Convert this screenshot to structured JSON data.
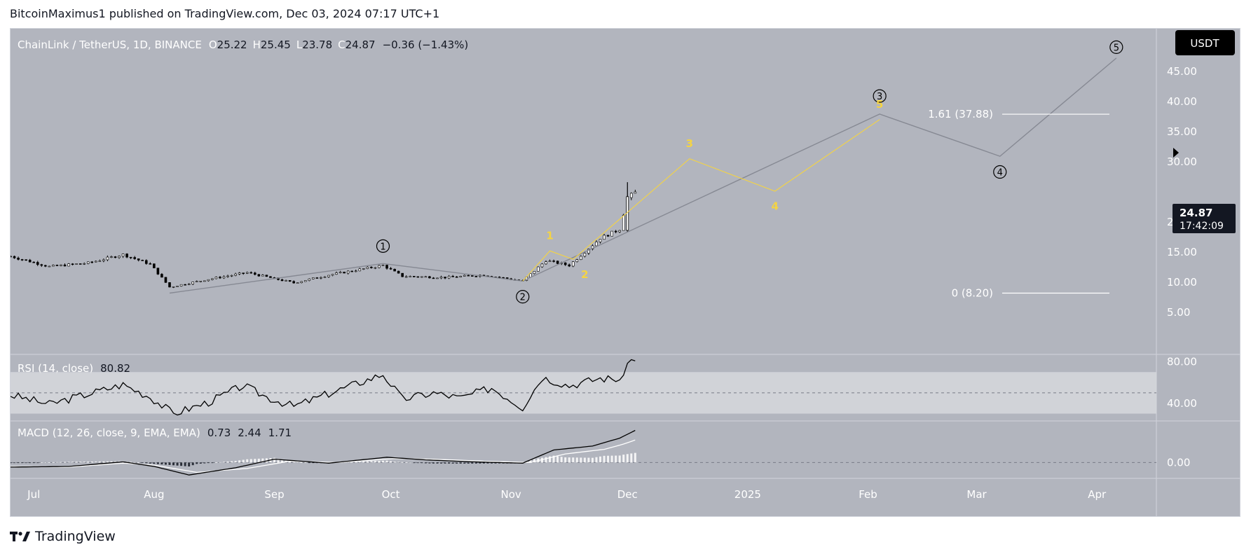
{
  "header": {
    "published_line": "BitcoinMaximus1 published on TradingView.com, Dec 03, 2024 07:17 UTC+1"
  },
  "footer": {
    "logo_text": "TradingView"
  },
  "colors": {
    "panel_bg": "#b2b5be",
    "candle": "#000000",
    "primary_wave_path": "#868993",
    "sub_wave_path": "#f5d442",
    "fib_line": "#ffffff",
    "rsi_band": "#d6d8dd",
    "currency_badge_bg": "#000000",
    "currency_badge_text": "#ffffff"
  },
  "chart_data": {
    "type": "candlestick",
    "symbol": "ChainLink / TetherUS",
    "timeframe": "1D",
    "exchange": "BINANCE",
    "ohlc": {
      "o_label": "O",
      "open": "25.22",
      "h_label": "H",
      "high": "25.45",
      "l_label": "L",
      "low": "23.78",
      "c_label": "C",
      "close": "24.87",
      "change": "−0.36 (−1.43%)"
    },
    "currency": "USDT",
    "last_price": "24.87",
    "countdown": "17:42:09",
    "price_axis": {
      "ylim": [
        5,
        48
      ],
      "ticks": [
        "45.00",
        "40.00",
        "35.00",
        "30.00",
        "20.00",
        "15.00",
        "10.00",
        "5.00"
      ]
    },
    "time_axis": {
      "ticks": [
        "Jul",
        "Aug",
        "Sep",
        "Oct",
        "Nov",
        "Dec",
        "2025",
        "Feb",
        "Mar",
        "Apr"
      ]
    },
    "candles": {
      "note_points": [
        [
          "2024-06-25",
          14.3
        ],
        [
          "2024-07-05",
          12.6
        ],
        [
          "2024-07-15",
          13.2
        ],
        [
          "2024-07-24",
          14.6
        ],
        [
          "2024-07-31",
          13.0
        ],
        [
          "2024-08-05",
          9.2
        ],
        [
          "2024-08-15",
          10.5
        ],
        [
          "2024-08-25",
          11.6
        ],
        [
          "2024-09-06",
          9.9
        ],
        [
          "2024-09-15",
          11.2
        ],
        [
          "2024-09-29",
          12.8
        ],
        [
          "2024-10-04",
          11.0
        ],
        [
          "2024-10-15",
          10.8
        ],
        [
          "2024-10-25",
          11.2
        ],
        [
          "2024-11-04",
          10.2
        ],
        [
          "2024-11-10",
          13.6
        ],
        [
          "2024-11-16",
          12.8
        ],
        [
          "2024-11-24",
          17.3
        ],
        [
          "2024-11-29",
          18.8
        ],
        [
          "2024-12-01",
          24.0
        ],
        [
          "2024-12-03",
          24.87
        ]
      ]
    },
    "primary_wave_path": {
      "points": [
        [
          "2024-08-05",
          8.2
        ],
        [
          "2024-09-29",
          13.1
        ],
        [
          "2024-11-04",
          10.2
        ],
        [
          "2025-02-04",
          37.9
        ],
        [
          "2025-03-07",
          30.9
        ],
        [
          "2025-04-06",
          47.2
        ]
      ]
    },
    "sub_wave_path": {
      "points": [
        [
          "2024-11-04",
          10.2
        ],
        [
          "2024-11-11",
          15.2
        ],
        [
          "2024-11-17",
          13.8
        ],
        [
          "2024-12-17",
          30.5
        ],
        [
          "2025-01-08",
          25.1
        ],
        [
          "2025-02-04",
          37.0
        ]
      ]
    },
    "wave_labels": [
      {
        "text": "1",
        "style": "circled",
        "date": "2024-09-29",
        "price": 16.0
      },
      {
        "text": "2",
        "style": "circled",
        "date": "2024-11-04",
        "price": 7.6
      },
      {
        "text": "3",
        "style": "circled",
        "date": "2025-02-04",
        "price": 40.9
      },
      {
        "text": "4",
        "style": "circled",
        "date": "2025-03-07",
        "price": 28.3
      },
      {
        "text": "5",
        "style": "circled",
        "date": "2025-04-06",
        "price": 49.0
      },
      {
        "text": "1",
        "style": "yellow",
        "date": "2024-11-11",
        "price": 17.7
      },
      {
        "text": "2",
        "style": "yellow",
        "date": "2024-11-20",
        "price": 11.3
      },
      {
        "text": "3",
        "style": "yellow",
        "date": "2024-12-17",
        "price": 33.0
      },
      {
        "text": "4",
        "style": "yellow",
        "date": "2025-01-08",
        "price": 22.6
      },
      {
        "text": "5",
        "style": "yellow",
        "date": "2025-02-04",
        "price": 39.5
      }
    ],
    "fib_levels": [
      {
        "label": "1.61 (37.88)",
        "price": 37.88
      },
      {
        "label": "0 (8.20)",
        "price": 8.2
      }
    ],
    "rsi": {
      "label": "RSI (14, close)",
      "value": "80.82",
      "ticks": [
        "80.00",
        "40.00"
      ],
      "band": [
        30,
        70
      ],
      "midline": 50,
      "points": [
        [
          "2024-06-25",
          48
        ],
        [
          "2024-07-05",
          39
        ],
        [
          "2024-07-12",
          46
        ],
        [
          "2024-07-19",
          53
        ],
        [
          "2024-07-24",
          58
        ],
        [
          "2024-07-31",
          46
        ],
        [
          "2024-08-06",
          30
        ],
        [
          "2024-08-15",
          41
        ],
        [
          "2024-08-24",
          57
        ],
        [
          "2024-08-30",
          46
        ],
        [
          "2024-09-06",
          37
        ],
        [
          "2024-09-17",
          52
        ],
        [
          "2024-09-29",
          68
        ],
        [
          "2024-10-04",
          44
        ],
        [
          "2024-10-12",
          50
        ],
        [
          "2024-10-19",
          45
        ],
        [
          "2024-10-27",
          55
        ],
        [
          "2024-11-04",
          36
        ],
        [
          "2024-11-09",
          65
        ],
        [
          "2024-11-16",
          57
        ],
        [
          "2024-11-24",
          64
        ],
        [
          "2024-11-30",
          63
        ],
        [
          "2024-12-01",
          82
        ],
        [
          "2024-12-03",
          80.82
        ]
      ]
    },
    "macd": {
      "label": "MACD (12, 26, close, 9, EMA, EMA)",
      "hist": "0.73",
      "macd": "2.44",
      "signal": "1.71",
      "ticks": [
        "0.00"
      ],
      "macd_points": [
        [
          "2024-06-25",
          -0.35
        ],
        [
          "2024-07-10",
          -0.3
        ],
        [
          "2024-07-24",
          0.05
        ],
        [
          "2024-08-01",
          -0.3
        ],
        [
          "2024-08-10",
          -0.95
        ],
        [
          "2024-08-22",
          -0.4
        ],
        [
          "2024-09-01",
          0.25
        ],
        [
          "2024-09-15",
          -0.05
        ],
        [
          "2024-09-30",
          0.4
        ],
        [
          "2024-10-10",
          0.2
        ],
        [
          "2024-10-22",
          0.05
        ],
        [
          "2024-11-04",
          -0.05
        ],
        [
          "2024-11-12",
          0.95
        ],
        [
          "2024-11-22",
          1.25
        ],
        [
          "2024-11-29",
          1.85
        ],
        [
          "2024-12-03",
          2.44
        ]
      ],
      "signal_points": [
        [
          "2024-06-25",
          -0.3
        ],
        [
          "2024-07-10",
          -0.35
        ],
        [
          "2024-07-24",
          -0.05
        ],
        [
          "2024-08-01",
          -0.2
        ],
        [
          "2024-08-12",
          -0.75
        ],
        [
          "2024-08-25",
          -0.45
        ],
        [
          "2024-09-05",
          0.1
        ],
        [
          "2024-09-18",
          0.0
        ],
        [
          "2024-10-02",
          0.3
        ],
        [
          "2024-10-12",
          0.25
        ],
        [
          "2024-10-25",
          0.1
        ],
        [
          "2024-11-06",
          0.0
        ],
        [
          "2024-11-15",
          0.65
        ],
        [
          "2024-11-25",
          1.0
        ],
        [
          "2024-11-30",
          1.4
        ],
        [
          "2024-12-03",
          1.71
        ]
      ],
      "ylim": [
        -1.1,
        3.0
      ]
    }
  }
}
